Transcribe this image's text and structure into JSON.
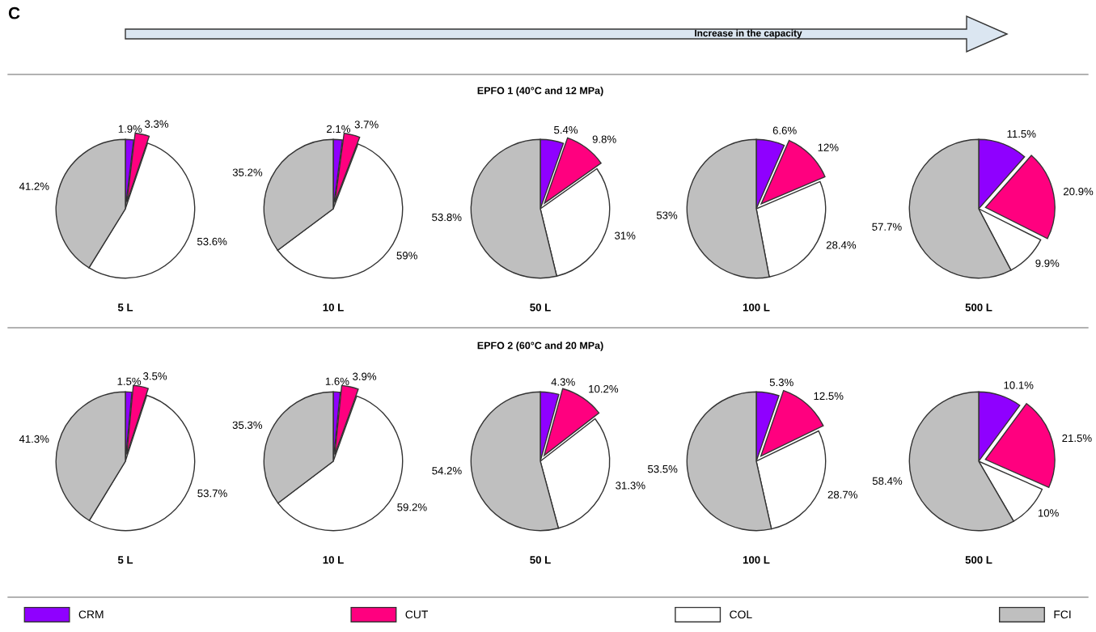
{
  "chart_data": [
    {
      "type": "pie",
      "xlabel": "5 L",
      "annotations": [
        "C",
        "Increase in the capacity"
      ],
      "legend": "bottom",
      "categories": [
        "CRM",
        "CUT",
        "COL",
        "FCI"
      ],
      "values": [
        1.9,
        3.3,
        53.6,
        41.2
      ],
      "value_labels": [
        "1.9%",
        "3.3%",
        "53.6%",
        "41.2%"
      ],
      "colors": [
        "#8f00ff",
        "#ff007f",
        "#ffffff",
        "#bfbfbf"
      ]
    },
    {
      "type": "pie",
      "xlabel": "10 L",
      "values": [
        2.1,
        3.7,
        59,
        35.2
      ],
      "value_labels": [
        "2.1%",
        "3.7%",
        "59%",
        "35.2%"
      ],
      "colors": [
        "#8f00ff",
        "#ff007f",
        "#ffffff",
        "#bfbfbf"
      ]
    },
    {
      "type": "pie",
      "title": "EPFO 1 (40°C and 12 MPa)",
      "xlabel": "50 L",
      "values": [
        5.4,
        9.8,
        31,
        53.8
      ],
      "value_labels": [
        "5.4%",
        "9.8%",
        "31%",
        "53.8%"
      ],
      "colors": [
        "#8f00ff",
        "#ff007f",
        "#ffffff",
        "#bfbfbf"
      ]
    },
    {
      "type": "pie",
      "xlabel": "100 L",
      "values": [
        6.6,
        12,
        28.4,
        53
      ],
      "value_labels": [
        "6.6%",
        "12%",
        "28.4%",
        "53%"
      ],
      "colors": [
        "#8f00ff",
        "#ff007f",
        "#ffffff",
        "#bfbfbf"
      ]
    },
    {
      "type": "pie",
      "xlabel": "500 L",
      "values": [
        11.5,
        20.9,
        9.9,
        57.7
      ],
      "value_labels": [
        "11.5%",
        "20.9%",
        "9.9%",
        "57.7%"
      ],
      "colors": [
        "#8f00ff",
        "#ff007f",
        "#ffffff",
        "#bfbfbf"
      ]
    },
    {
      "type": "pie",
      "xlabel": "5 L",
      "values": [
        1.5,
        3.5,
        53.7,
        41.3
      ],
      "value_labels": [
        "1.5%",
        "3.5%",
        "53.7%",
        "41.3%"
      ],
      "colors": [
        "#8f00ff",
        "#ff007f",
        "#ffffff",
        "#bfbfbf"
      ]
    },
    {
      "type": "pie",
      "xlabel": "10 L",
      "values": [
        1.6,
        3.9,
        59.2,
        35.3
      ],
      "value_labels": [
        "1.6%",
        "3.9%",
        "59.2%",
        "35.3%"
      ],
      "colors": [
        "#8f00ff",
        "#ff007f",
        "#ffffff",
        "#bfbfbf"
      ]
    },
    {
      "type": "pie",
      "title": "EPFO 2 (60°C and 20 MPa)",
      "xlabel": "50 L",
      "values": [
        4.3,
        10.2,
        31.3,
        54.2
      ],
      "value_labels": [
        "4.3%",
        "10.2%",
        "31.3%",
        "54.2%"
      ],
      "colors": [
        "#8f00ff",
        "#ff007f",
        "#ffffff",
        "#bfbfbf"
      ]
    },
    {
      "type": "pie",
      "xlabel": "100 L",
      "values": [
        5.3,
        12.5,
        28.7,
        53.5
      ],
      "value_labels": [
        "5.3%",
        "12.5%",
        "28.7%",
        "53.5%"
      ],
      "colors": [
        "#8f00ff",
        "#ff007f",
        "#ffffff",
        "#bfbfbf"
      ]
    },
    {
      "type": "pie",
      "xlabel": "500 L",
      "values": [
        10.1,
        21.5,
        10,
        58.4
      ],
      "value_labels": [
        "10.1%",
        "21.5%",
        "10%",
        "58.4%"
      ],
      "colors": [
        "#8f00ff",
        "#ff007f",
        "#ffffff",
        "#bfbfbf"
      ]
    }
  ]
}
